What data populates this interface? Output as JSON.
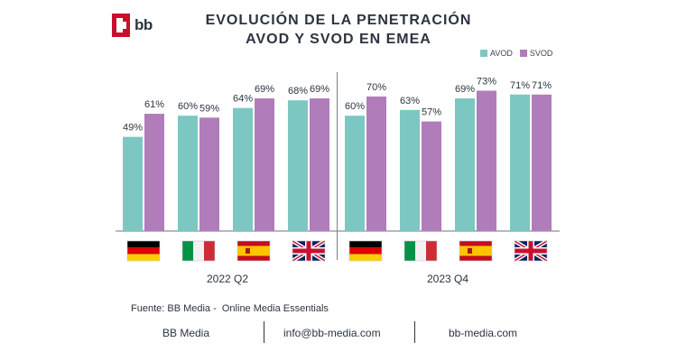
{
  "logo": {
    "text": "bb"
  },
  "title": {
    "line1": "EVOLUCIÓN DE LA PENETRACIÓN",
    "line2": "AVOD Y SVOD EN EMEA"
  },
  "legend": [
    {
      "label": "AVOD",
      "color": "#7cc7c2"
    },
    {
      "label": "SVOD",
      "color": "#b07cb9"
    }
  ],
  "chart_data": {
    "type": "bar",
    "groups": [
      {
        "period": "2022 Q2",
        "categories": [
          "germany-flag",
          "italy-flag",
          "spain-flag",
          "uk-flag"
        ]
      },
      {
        "period": "2023 Q4",
        "categories": [
          "germany-flag",
          "italy-flag",
          "spain-flag",
          "uk-flag"
        ]
      }
    ],
    "categories": [
      "DE 2022 Q2",
      "IT 2022 Q2",
      "ES 2022 Q2",
      "UK 2022 Q2",
      "DE 2023 Q4",
      "IT 2023 Q4",
      "ES 2023 Q4",
      "UK 2023 Q4"
    ],
    "series": [
      {
        "name": "AVOD",
        "color": "#7cc7c2",
        "values": [
          49,
          60,
          64,
          68,
          60,
          63,
          69,
          71
        ],
        "labels": [
          "49%",
          "60%",
          "64%",
          "68%",
          "60%",
          "63%",
          "69%",
          "71%"
        ]
      },
      {
        "name": "SVOD",
        "color": "#b07cb9",
        "values": [
          61,
          59,
          69,
          69,
          70,
          57,
          73,
          71
        ],
        "labels": [
          "61%",
          "59%",
          "69%",
          "69%",
          "70%",
          "57%",
          "73%",
          "71%"
        ]
      }
    ],
    "ylim": [
      0,
      100
    ],
    "grid": false,
    "legend_position": "top-right"
  },
  "periods": [
    "2022 Q2",
    "2023 Q4"
  ],
  "source": "Fuente: BB Media -  Online Media Essentials",
  "footer": {
    "company": "BB Media",
    "email": "info@bb-media.com",
    "website": "bb-media.com"
  }
}
